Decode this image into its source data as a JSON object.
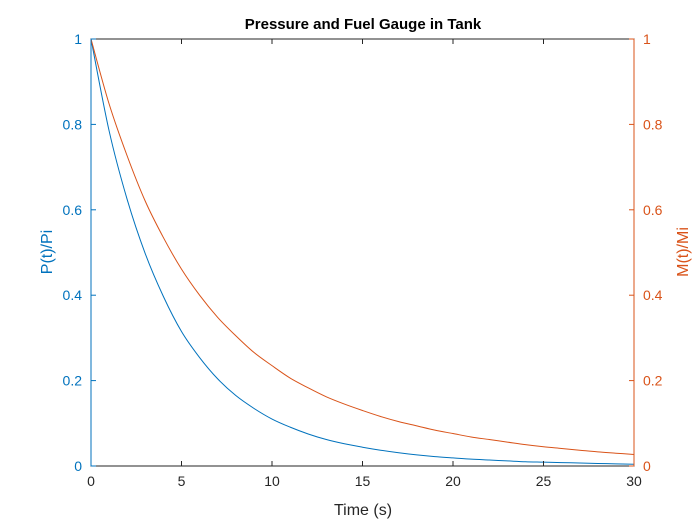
{
  "chart_data": {
    "type": "line",
    "title": "Pressure and Fuel Gauge in Tank",
    "xlabel": "Time (s)",
    "ylabel_left": "P(t)/Pi",
    "ylabel_right": "M(t)/Mi",
    "xlim": [
      0,
      30
    ],
    "ylim_left": [
      0,
      1
    ],
    "ylim_right": [
      0,
      1
    ],
    "x_ticks": [
      "0",
      "5",
      "10",
      "15",
      "20",
      "25",
      "30"
    ],
    "y_ticks_left": [
      "0",
      "0.2",
      "0.4",
      "0.6",
      "0.8",
      "1"
    ],
    "y_ticks_right": [
      "0",
      "0.2",
      "0.4",
      "0.6",
      "0.8",
      "1"
    ],
    "grid": false,
    "colors": {
      "left_axis": "#0072BD",
      "right_axis": "#D95319",
      "box": "#262626"
    },
    "series": [
      {
        "axis": "left",
        "color": "#0072BD",
        "x": [
          0,
          1,
          2,
          3,
          4,
          5,
          6,
          7,
          8,
          9,
          10,
          11,
          12,
          13,
          14,
          15,
          16,
          17,
          18,
          19,
          20,
          21,
          22,
          23,
          24,
          25,
          26,
          27,
          28,
          29,
          30
        ],
        "y": [
          1.0,
          0.785,
          0.624,
          0.497,
          0.397,
          0.315,
          0.254,
          0.204,
          0.165,
          0.135,
          0.11,
          0.091,
          0.075,
          0.062,
          0.052,
          0.044,
          0.037,
          0.031,
          0.026,
          0.022,
          0.019,
          0.016,
          0.014,
          0.012,
          0.01,
          0.009,
          0.008,
          0.007,
          0.006,
          0.005,
          0.004
        ]
      },
      {
        "axis": "right",
        "color": "#D95319",
        "x": [
          0,
          1,
          2,
          3,
          4,
          5,
          6,
          7,
          8,
          9,
          10,
          11,
          12,
          13,
          14,
          15,
          16,
          17,
          18,
          19,
          20,
          21,
          22,
          23,
          24,
          25,
          26,
          27,
          28,
          29,
          30
        ],
        "y": [
          1.0,
          0.848,
          0.726,
          0.62,
          0.535,
          0.461,
          0.4,
          0.348,
          0.305,
          0.266,
          0.235,
          0.206,
          0.183,
          0.162,
          0.145,
          0.13,
          0.116,
          0.104,
          0.094,
          0.084,
          0.076,
          0.068,
          0.062,
          0.056,
          0.05,
          0.045,
          0.041,
          0.037,
          0.033,
          0.03,
          0.027
        ]
      }
    ]
  }
}
